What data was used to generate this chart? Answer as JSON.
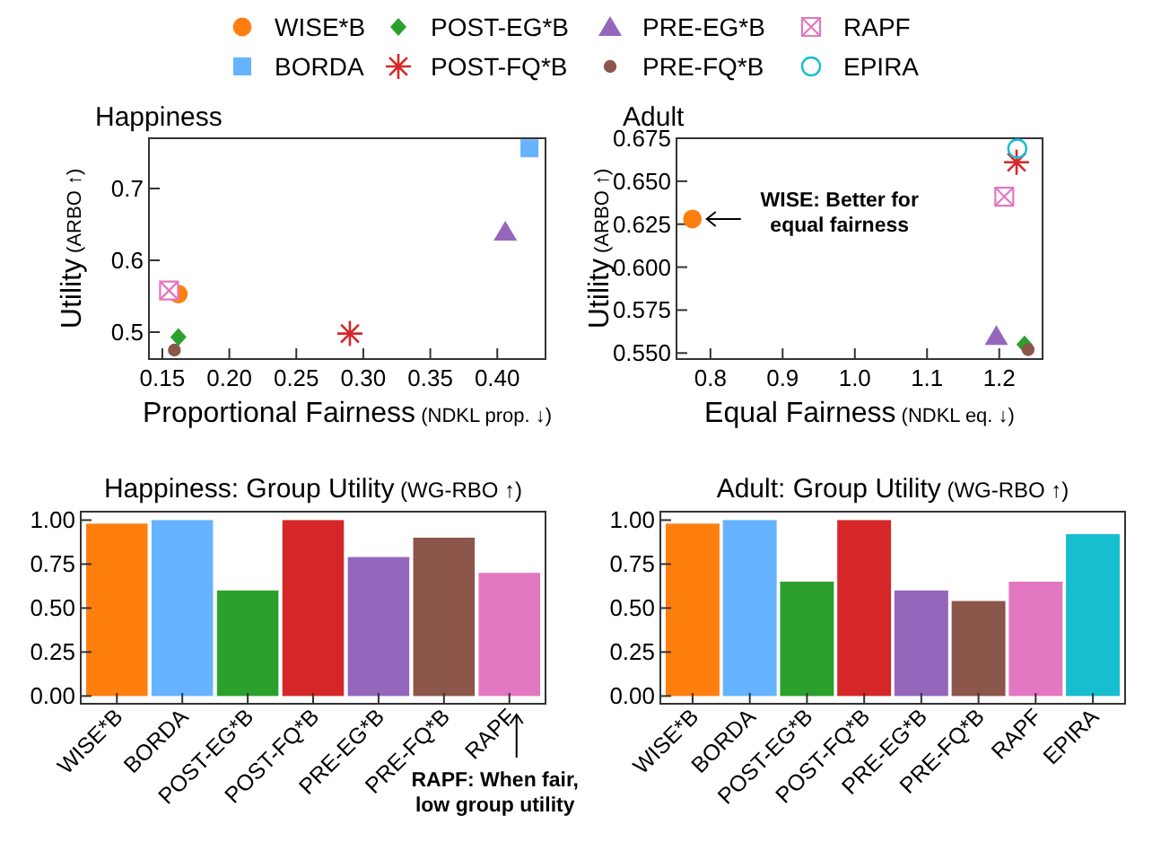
{
  "chart_data": [
    {
      "type": "scatter",
      "title": "Happiness",
      "xlabel": "Proportional Fairness (NDKL prop. ↓)",
      "ylabel": "Utility (ARBO ↑)",
      "xlim": [
        0.14,
        0.436
      ],
      "ylim": [
        0.4625,
        0.77
      ],
      "xticks": [
        {
          "value": 0.15,
          "label": "0.15"
        },
        {
          "value": 0.2,
          "label": "0.20"
        },
        {
          "value": 0.25,
          "label": "0.25"
        },
        {
          "value": 0.3,
          "label": "0.30"
        },
        {
          "value": 0.35,
          "label": "0.35"
        },
        {
          "value": 0.4,
          "label": "0.40"
        }
      ],
      "yticks": [
        0.5,
        0.6,
        0.7
      ],
      "legend": "top",
      "series": [
        {
          "name": "WISE*B",
          "color": "#ff7f0e",
          "marker": "circle",
          "x": [
            0.162
          ],
          "values": [
            0.553
          ]
        },
        {
          "name": "BORDA",
          "color": "#66b3ff",
          "marker": "square",
          "x": [
            0.424
          ],
          "values": [
            0.756
          ]
        },
        {
          "name": "POST-EG*B",
          "color": "#2ca02c",
          "marker": "diamond",
          "x": [
            0.162
          ],
          "values": [
            0.493
          ]
        },
        {
          "name": "POST-FQ*B",
          "color": "#d62728",
          "marker": "cross",
          "x": [
            0.29
          ],
          "values": [
            0.498
          ]
        },
        {
          "name": "PRE-EG*B",
          "color": "#9467bd",
          "marker": "triangle",
          "x": [
            0.406
          ],
          "values": [
            0.64
          ]
        },
        {
          "name": "PRE-FQ*B",
          "color": "#8c564b",
          "marker": "circle",
          "x": [
            0.159
          ],
          "values": [
            0.475
          ]
        },
        {
          "name": "RAPF",
          "color": "#e377c2",
          "marker": "cross",
          "x": [
            0.155
          ],
          "values": [
            0.558
          ]
        },
        {
          "name": "EPIRA",
          "color": "#17becf",
          "marker": "circle",
          "x": [
            null
          ],
          "values": [
            null
          ]
        }
      ]
    },
    {
      "type": "scatter",
      "title": "Adult",
      "xlabel": "Equal Fairness (NDKL eq. ↓)",
      "ylabel": "Utility (ARBO ↑)",
      "xlim": [
        0.753,
        1.26
      ],
      "ylim": [
        0.5465,
        0.675
      ],
      "xticks": [
        0.8,
        0.9,
        {
          "value": 1.0,
          "label": "1.0"
        },
        1.1,
        1.2
      ],
      "yticks": [
        {
          "value": 0.55,
          "label": "0.550"
        },
        {
          "value": 0.575,
          "label": "0.575"
        },
        {
          "value": 0.6,
          "label": "0.600"
        },
        {
          "value": 0.625,
          "label": "0.625"
        },
        {
          "value": 0.65,
          "label": "0.650"
        },
        {
          "value": 0.675,
          "label": "0.675"
        }
      ],
      "annotations": [
        {
          "text": "WISE:  Better for\nequal fairness",
          "x": 0.775,
          "y": 0.628
        }
      ],
      "series": [
        {
          "color": "#ff7f0e",
          "marker": "circle",
          "x": [
            0.775
          ],
          "values": [
            0.628
          ]
        },
        {
          "color": "#2ca02c",
          "marker": "diamond",
          "x": [
            1.235
          ],
          "values": [
            0.555
          ]
        },
        {
          "color": "#d62728",
          "marker": "cross",
          "x": [
            1.224
          ],
          "values": [
            0.661
          ]
        },
        {
          "color": "#9467bd",
          "marker": "triangle",
          "x": [
            1.196
          ],
          "values": [
            0.56
          ]
        },
        {
          "color": "#8c564b",
          "marker": "circle",
          "x": [
            1.24
          ],
          "values": [
            0.552
          ]
        },
        {
          "color": "#e377c2",
          "marker": "cross",
          "x": [
            1.207
          ],
          "values": [
            0.641
          ]
        },
        {
          "color": "#17becf",
          "marker": "circle",
          "x": [
            1.225
          ],
          "values": [
            0.669
          ]
        }
      ]
    },
    {
      "type": "bar",
      "title": "Happiness: Group Utility (WG-RBO ↑)",
      "categories": [
        "WISE*B",
        "BORDA",
        "POST-EG*B",
        "POST-FQ*B",
        "PRE-EG*B",
        "PRE-FQ*B",
        "RAPF"
      ],
      "values": [
        0.98,
        1.0,
        0.6,
        1.0,
        0.79,
        0.9,
        0.7
      ],
      "colors": [
        "#ff7f0e",
        "#66b3ff",
        "#2ca02c",
        "#d62728",
        "#9467bd",
        "#8c564b",
        "#e377c2"
      ],
      "ylim": [
        -0.044,
        1.048
      ],
      "yticks": [
        {
          "value": 0,
          "label": "0.00"
        },
        {
          "value": 0.25,
          "label": "0.25"
        },
        {
          "value": 0.5,
          "label": "0.50"
        },
        {
          "value": 0.75,
          "label": "0.75"
        },
        {
          "value": 1,
          "label": "1.00"
        }
      ],
      "annotations": [
        "RAPF: When fair,\nlow group utility"
      ]
    },
    {
      "type": "bar",
      "title": "Adult: Group Utility (WG-RBO ↑)",
      "categories": [
        "WISE*B",
        "BORDA",
        "POST-EG*B",
        "POST-FQ*B",
        "PRE-EG*B",
        "PRE-FQ*B",
        "RAPF",
        "EPIRA"
      ],
      "values": [
        0.98,
        1.0,
        0.65,
        1.0,
        0.6,
        0.54,
        0.65,
        0.92
      ],
      "colors": [
        "#ff7f0e",
        "#66b3ff",
        "#2ca02c",
        "#d62728",
        "#9467bd",
        "#8c564b",
        "#e377c2",
        "#17becf"
      ],
      "ylim": [
        -0.044,
        1.048
      ],
      "yticks": [
        {
          "value": 0,
          "label": "0.00"
        },
        {
          "value": 0.25,
          "label": "0.25"
        },
        {
          "value": 0.5,
          "label": "0.50"
        },
        {
          "value": 0.75,
          "label": "0.75"
        },
        {
          "value": 1,
          "label": "1.00"
        }
      ]
    }
  ]
}
